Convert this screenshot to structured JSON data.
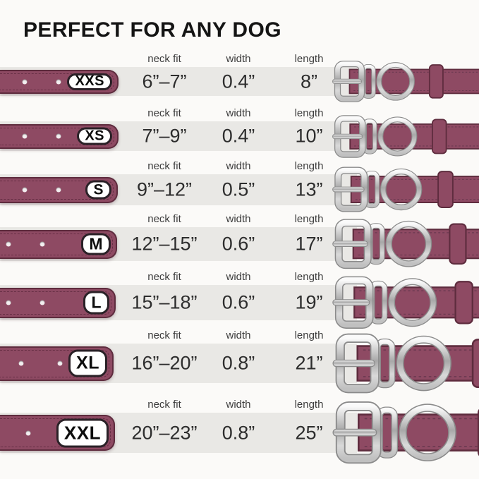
{
  "title": "PERFECT FOR ANY DOG",
  "columns": {
    "neck": "neck fit",
    "width": "width",
    "length": "length"
  },
  "colors": {
    "collar": "#8e4a63",
    "collar_dark": "#5e2c3e",
    "stitch": "#6b3950",
    "band": "#e9e8e5",
    "background": "#fbfaf8",
    "badge_border": "#2a2127",
    "metal": "#c6c6c6",
    "text": "#2d2d2d"
  },
  "rows": [
    {
      "size": "XXS",
      "neck_fit": "6”–7”",
      "width": "0.4”",
      "length": "8”"
    },
    {
      "size": "XS",
      "neck_fit": "7”–9”",
      "width": "0.4”",
      "length": "10”"
    },
    {
      "size": "S",
      "neck_fit": "9”–12”",
      "width": "0.5”",
      "length": "13”"
    },
    {
      "size": "M",
      "neck_fit": "12”–15”",
      "width": "0.6”",
      "length": "17”"
    },
    {
      "size": "L",
      "neck_fit": "15”–18”",
      "width": "0.6”",
      "length": "19”"
    },
    {
      "size": "XL",
      "neck_fit": "16”–20”",
      "width": "0.8”",
      "length": "21”"
    },
    {
      "size": "XXL",
      "neck_fit": "20”–23”",
      "width": "0.8”",
      "length": "25”"
    }
  ],
  "chart_data": {
    "type": "table",
    "title": "PERFECT FOR ANY DOG",
    "columns": [
      "size",
      "neck fit",
      "width",
      "length"
    ],
    "rows": [
      [
        "XXS",
        "6”–7”",
        "0.4”",
        "8”"
      ],
      [
        "XS",
        "7”–9”",
        "0.4”",
        "10”"
      ],
      [
        "S",
        "9”–12”",
        "0.5”",
        "13”"
      ],
      [
        "M",
        "12”–15”",
        "0.6”",
        "17”"
      ],
      [
        "L",
        "15”–18”",
        "0.6”",
        "19”"
      ],
      [
        "XL",
        "16”–20”",
        "0.8”",
        "21”"
      ],
      [
        "XXL",
        "20”–23”",
        "0.8”",
        "25”"
      ]
    ]
  }
}
